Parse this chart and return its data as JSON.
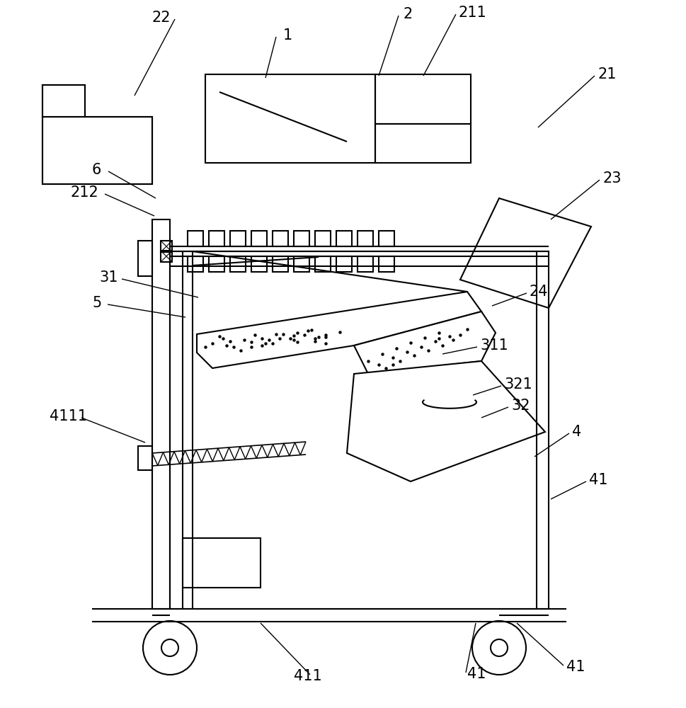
{
  "bg_color": "#ffffff",
  "line_color": "#000000",
  "label_color": "#000000",
  "lw": 1.5
}
